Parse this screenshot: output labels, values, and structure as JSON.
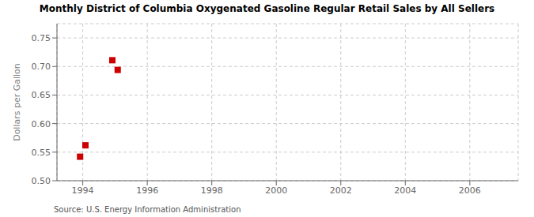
{
  "chart_data": {
    "type": "scatter",
    "title": "Monthly District of Columbia Oxygenated Gasoline Regular Retail Sales by All Sellers",
    "ylabel": "Dollars per Gallon",
    "annotations": [
      "Source: U.S. Energy Information Administration"
    ],
    "x": [
      1993.917,
      1994.083,
      1994.917,
      1995.083
    ],
    "values": [
      0.542,
      0.562,
      0.711,
      0.694
    ],
    "color": "#cc0000",
    "marker": "square",
    "xlim": [
      1993.2,
      2007.5
    ],
    "ylim": [
      0.5,
      0.775
    ],
    "xticks": [
      1994,
      1996,
      1998,
      2000,
      2002,
      2004,
      2006
    ],
    "yticks": [
      {
        "value": 0.5,
        "label": "0.50"
      },
      0.55,
      {
        "value": 0.6,
        "label": "0.60"
      },
      0.65,
      {
        "value": 0.7,
        "label": "0.70"
      },
      0.75
    ],
    "grid": true
  }
}
